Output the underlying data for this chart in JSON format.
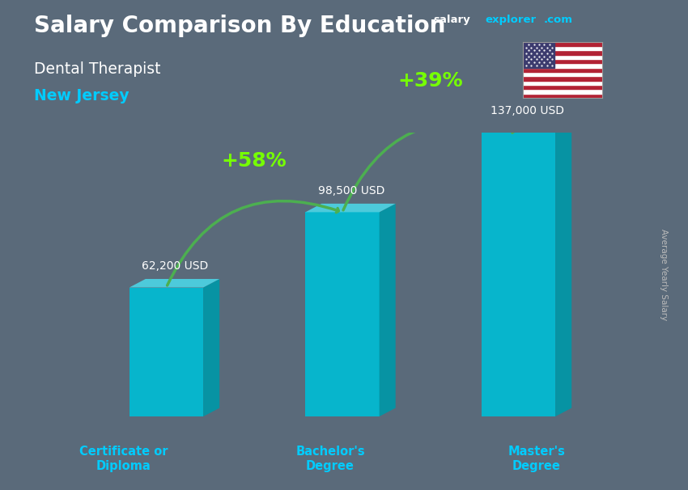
{
  "title": "Salary Comparison By Education",
  "subtitle_job": "Dental Therapist",
  "subtitle_location": "New Jersey",
  "categories": [
    "Certificate or\nDiploma",
    "Bachelor's\nDegree",
    "Master's\nDegree"
  ],
  "values": [
    62200,
    98500,
    137000
  ],
  "value_labels": [
    "62,200 USD",
    "98,500 USD",
    "137,000 USD"
  ],
  "bar_color_front": "#00bcd4",
  "bar_color_right": "#00acc1",
  "bar_color_top": "#4dd0e1",
  "pct_labels": [
    "+58%",
    "+39%"
  ],
  "pct_color": "#76ff03",
  "arrow_color": "#4caf50",
  "ylabel_side": "Average Yearly Salary",
  "bg_color": "#5a6a7a",
  "title_color": "#ffffff",
  "subtitle_job_color": "#ffffff",
  "subtitle_loc_color": "#00ccff",
  "xtick_color": "#00ccff",
  "value_label_color": "#ffffff",
  "brand_salary_color": "#ffffff",
  "brand_explorer_color": "#00ccff",
  "brand_com_color": "#00ccff"
}
